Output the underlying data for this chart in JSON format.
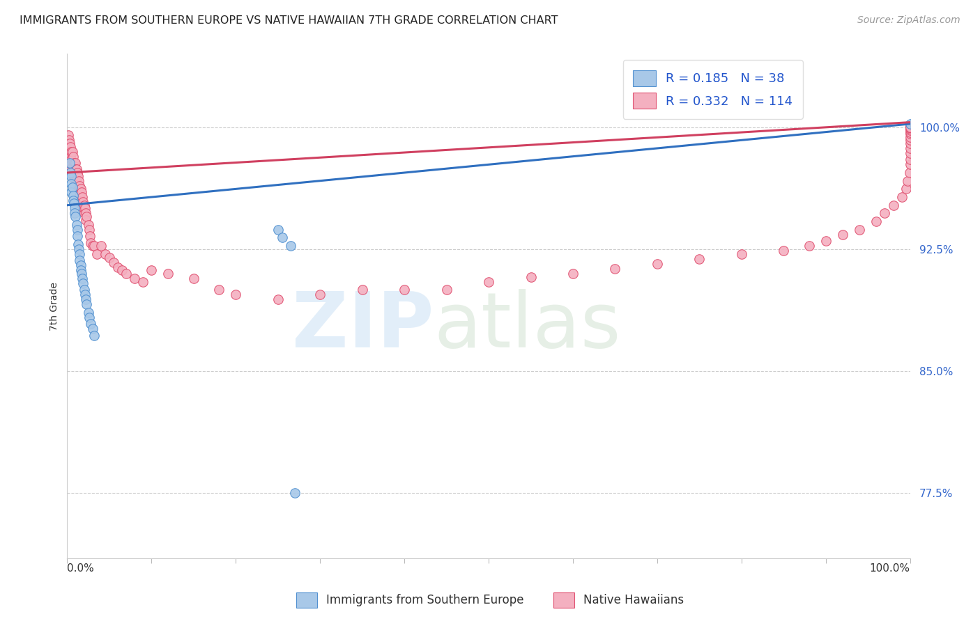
{
  "title": "IMMIGRANTS FROM SOUTHERN EUROPE VS NATIVE HAWAIIAN 7TH GRADE CORRELATION CHART",
  "source": "Source: ZipAtlas.com",
  "ylabel": "7th Grade",
  "ytick_labels": [
    "77.5%",
    "85.0%",
    "92.5%",
    "100.0%"
  ],
  "ytick_values": [
    0.775,
    0.85,
    0.925,
    1.0
  ],
  "ymin": 0.735,
  "ymax": 1.045,
  "xmin": 0.0,
  "xmax": 1.0,
  "blue_R": 0.185,
  "blue_N": 38,
  "pink_R": 0.332,
  "pink_N": 114,
  "blue_color": "#a8c8e8",
  "pink_color": "#f4b0c0",
  "blue_edge_color": "#5090d0",
  "pink_edge_color": "#e05070",
  "blue_line_color": "#3070c0",
  "pink_line_color": "#d04060",
  "legend_label_blue": "Immigrants from Southern Europe",
  "legend_label_pink": "Native Hawaiians",
  "blue_line_start_y": 0.952,
  "blue_line_end_y": 1.002,
  "pink_line_start_y": 0.972,
  "pink_line_end_y": 1.003,
  "blue_scatter_x": [
    0.003,
    0.004,
    0.005,
    0.005,
    0.005,
    0.006,
    0.007,
    0.007,
    0.008,
    0.009,
    0.009,
    0.01,
    0.011,
    0.012,
    0.012,
    0.013,
    0.014,
    0.015,
    0.015,
    0.016,
    0.016,
    0.017,
    0.018,
    0.019,
    0.02,
    0.021,
    0.022,
    0.023,
    0.025,
    0.026,
    0.028,
    0.03,
    0.032,
    0.25,
    0.255,
    0.265,
    0.27,
    1.0
  ],
  "blue_scatter_y": [
    0.978,
    0.972,
    0.97,
    0.965,
    0.96,
    0.963,
    0.958,
    0.955,
    0.953,
    0.95,
    0.947,
    0.945,
    0.94,
    0.937,
    0.933,
    0.928,
    0.925,
    0.922,
    0.918,
    0.915,
    0.912,
    0.91,
    0.907,
    0.904,
    0.9,
    0.897,
    0.894,
    0.891,
    0.886,
    0.883,
    0.879,
    0.876,
    0.872,
    0.937,
    0.932,
    0.927,
    0.775,
    1.002
  ],
  "pink_scatter_x": [
    0.001,
    0.002,
    0.003,
    0.004,
    0.004,
    0.005,
    0.005,
    0.005,
    0.006,
    0.006,
    0.007,
    0.007,
    0.007,
    0.008,
    0.008,
    0.008,
    0.009,
    0.009,
    0.01,
    0.01,
    0.01,
    0.011,
    0.011,
    0.012,
    0.012,
    0.013,
    0.013,
    0.014,
    0.014,
    0.015,
    0.015,
    0.016,
    0.016,
    0.017,
    0.018,
    0.018,
    0.019,
    0.02,
    0.02,
    0.021,
    0.022,
    0.022,
    0.023,
    0.025,
    0.026,
    0.027,
    0.028,
    0.03,
    0.032,
    0.035,
    0.04,
    0.045,
    0.05,
    0.055,
    0.06,
    0.065,
    0.07,
    0.08,
    0.09,
    0.1,
    0.12,
    0.15,
    0.18,
    0.2,
    0.25,
    0.3,
    0.35,
    0.4,
    0.45,
    0.5,
    0.55,
    0.6,
    0.65,
    0.7,
    0.75,
    0.8,
    0.85,
    0.88,
    0.9,
    0.92,
    0.94,
    0.96,
    0.97,
    0.98,
    0.99,
    0.995,
    0.997,
    0.999,
    1.0,
    1.0,
    1.0,
    1.0,
    1.0,
    1.0,
    1.0,
    1.0,
    1.0,
    1.0,
    1.0,
    1.0,
    1.0,
    1.0,
    1.0,
    1.0,
    1.0,
    1.0,
    1.0,
    1.0,
    1.0,
    1.0,
    1.0,
    1.0,
    1.0,
    1.0
  ],
  "pink_scatter_y": [
    0.995,
    0.992,
    0.99,
    0.988,
    0.982,
    0.985,
    0.98,
    0.975,
    0.985,
    0.978,
    0.982,
    0.976,
    0.972,
    0.978,
    0.974,
    0.968,
    0.976,
    0.97,
    0.978,
    0.974,
    0.968,
    0.974,
    0.968,
    0.972,
    0.965,
    0.97,
    0.963,
    0.967,
    0.96,
    0.964,
    0.958,
    0.962,
    0.955,
    0.96,
    0.957,
    0.951,
    0.954,
    0.952,
    0.947,
    0.95,
    0.947,
    0.943,
    0.945,
    0.94,
    0.937,
    0.933,
    0.929,
    0.927,
    0.927,
    0.922,
    0.927,
    0.922,
    0.92,
    0.917,
    0.914,
    0.912,
    0.91,
    0.907,
    0.905,
    0.912,
    0.91,
    0.907,
    0.9,
    0.897,
    0.894,
    0.897,
    0.9,
    0.9,
    0.9,
    0.905,
    0.908,
    0.91,
    0.913,
    0.916,
    0.919,
    0.922,
    0.924,
    0.927,
    0.93,
    0.934,
    0.937,
    0.942,
    0.947,
    0.952,
    0.957,
    0.962,
    0.967,
    0.972,
    0.977,
    0.98,
    0.984,
    0.987,
    0.99,
    0.992,
    0.994,
    0.996,
    0.997,
    0.998,
    0.999,
    1.0,
    1.0,
    1.0,
    1.0,
    1.0,
    1.0,
    1.0,
    1.0,
    1.0,
    1.0,
    1.0,
    1.0,
    1.0,
    1.0,
    1.0
  ]
}
